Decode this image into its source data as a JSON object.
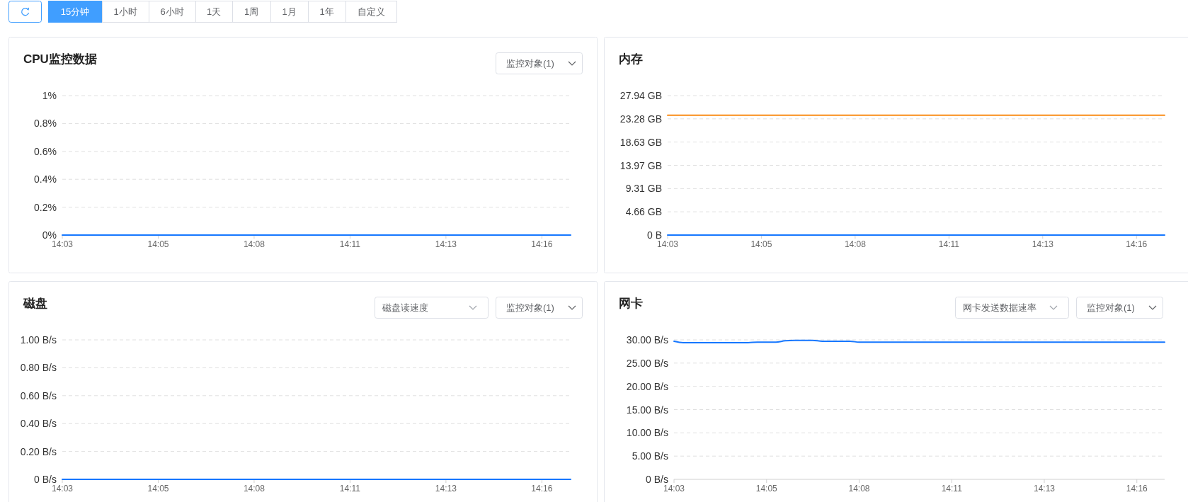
{
  "chart_data": [
    {
      "type": "other",
      "annotations": [
        "15分钟",
        "1小时",
        "6小时",
        "1天",
        "1周",
        "1月",
        "1年",
        "自定义"
      ]
    },
    {
      "type": "line",
      "title": "CPU监控数据",
      "annotations": [
        "监控对象(1)"
      ],
      "grid": "y",
      "marker": "none",
      "categories": [
        "14:03",
        null,
        null,
        null,
        null,
        null,
        null,
        null,
        null,
        null,
        "14:05",
        null,
        null,
        null,
        null,
        null,
        null,
        null,
        null,
        null,
        "14:08",
        null,
        null,
        null,
        null,
        null,
        null,
        null,
        null,
        null,
        "14:11",
        null,
        null,
        null,
        null,
        null,
        null,
        null,
        null,
        null,
        "14:13",
        null,
        null,
        null,
        null,
        null,
        null,
        null,
        null,
        null,
        "14:16",
        null,
        null,
        null
      ],
      "ylim": [
        0,
        1
      ],
      "yticks": [
        {
          "value": 0,
          "label": "0%"
        },
        {
          "value": 0.2,
          "label": "0.2%"
        },
        {
          "value": 0.4,
          "label": "0.4%"
        },
        {
          "value": 0.6,
          "label": "0.6%"
        },
        {
          "value": 0.8,
          "label": "0.8%"
        },
        {
          "value": 1,
          "label": "1%"
        }
      ],
      "series": [
        {
          "color": "#1677ff",
          "values": [
            0,
            0,
            0,
            0,
            0,
            0,
            0,
            0,
            0,
            0,
            0,
            0,
            0,
            0,
            0,
            0,
            0,
            0,
            0,
            0,
            0,
            0,
            0,
            0,
            0,
            0,
            0,
            0,
            0,
            0,
            0,
            0,
            0,
            0,
            0,
            0,
            0,
            0,
            0,
            0,
            0,
            0,
            0,
            0,
            0,
            0,
            0,
            0,
            0,
            0,
            0,
            0,
            0,
            0
          ]
        }
      ]
    },
    {
      "type": "line",
      "title": "内存",
      "grid": "y",
      "marker": "none",
      "categories": [
        "14:03",
        null,
        null,
        null,
        null,
        null,
        null,
        null,
        null,
        null,
        "14:05",
        null,
        null,
        null,
        null,
        null,
        null,
        null,
        null,
        null,
        "14:08",
        null,
        null,
        null,
        null,
        null,
        null,
        null,
        null,
        null,
        "14:11",
        null,
        null,
        null,
        null,
        null,
        null,
        null,
        null,
        null,
        "14:13",
        null,
        null,
        null,
        null,
        null,
        null,
        null,
        null,
        null,
        "14:16",
        null,
        null,
        null
      ],
      "ylim": [
        0,
        27.94
      ],
      "yticks": [
        {
          "value": 0,
          "label": "0 B"
        },
        {
          "value": 4.66,
          "label": "4.66 GB"
        },
        {
          "value": 9.31,
          "label": "9.31 GB"
        },
        {
          "value": 13.97,
          "label": "13.97 GB"
        },
        {
          "value": 18.63,
          "label": "18.63 GB"
        },
        {
          "value": 23.28,
          "label": "23.28 GB"
        },
        {
          "value": 27.94,
          "label": "27.94 GB"
        }
      ],
      "series": [
        {
          "color": "#fa8c16",
          "values": [
            24,
            24,
            24,
            24,
            24,
            24,
            24,
            24,
            24,
            24,
            24,
            24,
            24,
            24,
            24,
            24,
            24,
            24,
            24,
            24,
            24,
            24,
            24,
            24,
            24,
            24,
            24,
            24,
            24,
            24,
            24,
            24,
            24,
            24,
            24,
            24,
            24,
            24,
            24,
            24,
            24,
            24,
            24,
            24,
            24,
            24,
            24,
            24,
            24,
            24,
            24,
            24,
            24,
            24
          ]
        },
        {
          "color": "#1677ff",
          "values": [
            0,
            0,
            0,
            0,
            0,
            0,
            0,
            0,
            0,
            0,
            0,
            0,
            0,
            0,
            0,
            0,
            0,
            0,
            0,
            0,
            0,
            0,
            0,
            0,
            0,
            0,
            0,
            0,
            0,
            0,
            0,
            0,
            0,
            0,
            0,
            0,
            0,
            0,
            0,
            0,
            0,
            0,
            0,
            0,
            0,
            0,
            0,
            0,
            0,
            0,
            0,
            0,
            0,
            0
          ]
        }
      ]
    },
    {
      "type": "line",
      "title": "磁盘",
      "annotations": [
        "磁盘读速度",
        "监控对象(1)"
      ],
      "grid": "y",
      "marker": "none",
      "categories": [
        "14:03",
        null,
        null,
        null,
        null,
        null,
        null,
        null,
        null,
        null,
        "14:05",
        null,
        null,
        null,
        null,
        null,
        null,
        null,
        null,
        null,
        "14:08",
        null,
        null,
        null,
        null,
        null,
        null,
        null,
        null,
        null,
        "14:11",
        null,
        null,
        null,
        null,
        null,
        null,
        null,
        null,
        null,
        "14:13",
        null,
        null,
        null,
        null,
        null,
        null,
        null,
        null,
        null,
        "14:16",
        null,
        null,
        null
      ],
      "ylim": [
        0,
        1
      ],
      "yticks": [
        {
          "value": 0,
          "label": "0 B/s"
        },
        {
          "value": 0.2,
          "label": "0.20 B/s"
        },
        {
          "value": 0.4,
          "label": "0.40 B/s"
        },
        {
          "value": 0.6,
          "label": "0.60 B/s"
        },
        {
          "value": 0.8,
          "label": "0.80 B/s"
        },
        {
          "value": 1,
          "label": "1.00 B/s"
        }
      ],
      "series": [
        {
          "color": "#1677ff",
          "values": [
            0,
            0,
            0,
            0,
            0,
            0,
            0,
            0,
            0,
            0,
            0,
            0,
            0,
            0,
            0,
            0,
            0,
            0,
            0,
            0,
            0,
            0,
            0,
            0,
            0,
            0,
            0,
            0,
            0,
            0,
            0,
            0,
            0,
            0,
            0,
            0,
            0,
            0,
            0,
            0,
            0,
            0,
            0,
            0,
            0,
            0,
            0,
            0,
            0,
            0,
            0,
            0,
            0,
            0
          ]
        }
      ]
    },
    {
      "type": "line",
      "title": "网卡",
      "annotations": [
        "网卡发送数据速率",
        "监控对象(1)"
      ],
      "grid": "y",
      "marker": "none",
      "categories": [
        "14:03",
        null,
        null,
        null,
        null,
        null,
        null,
        null,
        null,
        null,
        "14:05",
        null,
        null,
        null,
        null,
        null,
        null,
        null,
        null,
        null,
        "14:08",
        null,
        null,
        null,
        null,
        null,
        null,
        null,
        null,
        null,
        "14:11",
        null,
        null,
        null,
        null,
        null,
        null,
        null,
        null,
        null,
        "14:13",
        null,
        null,
        null,
        null,
        null,
        null,
        null,
        null,
        null,
        "14:16",
        null,
        null,
        null
      ],
      "ylim": [
        0,
        30
      ],
      "yticks": [
        {
          "value": 0,
          "label": "0 B/s"
        },
        {
          "value": 5,
          "label": "5.00 B/s"
        },
        {
          "value": 10,
          "label": "10.00 B/s"
        },
        {
          "value": 15,
          "label": "15.00 B/s"
        },
        {
          "value": 20,
          "label": "20.00 B/s"
        },
        {
          "value": 25,
          "label": "25.00 B/s"
        },
        {
          "value": 30,
          "label": "30.00 B/s"
        }
      ],
      "series": [
        {
          "color": "#1677ff",
          "values": [
            29.7,
            29.4,
            29.4,
            29.4,
            29.4,
            29.4,
            29.4,
            29.4,
            29.4,
            29.5,
            29.5,
            29.5,
            29.8,
            29.9,
            29.9,
            29.9,
            29.7,
            29.7,
            29.7,
            29.7,
            29.5,
            29.5,
            29.5,
            29.5,
            29.5,
            29.5,
            29.5,
            29.5,
            29.5,
            29.5,
            29.5,
            29.5,
            29.5,
            29.5,
            29.5,
            29.5,
            29.5,
            29.5,
            29.5,
            29.5,
            29.5,
            29.5,
            29.5,
            29.5,
            29.5,
            29.5,
            29.5,
            29.5,
            29.5,
            29.5,
            29.5,
            29.5,
            29.5,
            29.5
          ]
        }
      ]
    }
  ]
}
